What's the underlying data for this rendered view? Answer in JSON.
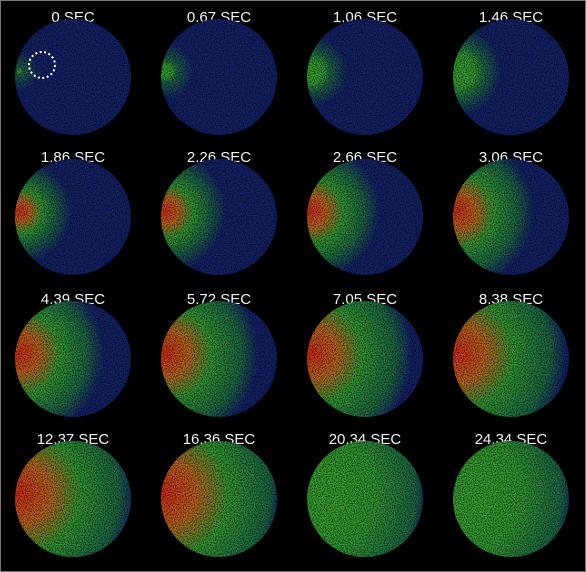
{
  "panels": [
    {
      "label": "0 SEC"
    },
    {
      "label": "0.67 SEC"
    },
    {
      "label": "1.06 SEC"
    },
    {
      "label": "1.46 SEC"
    },
    {
      "label": "1.86 SEC"
    },
    {
      "label": "2.26 SEC"
    },
    {
      "label": "2.66 SEC"
    },
    {
      "label": "3.06 SEC"
    },
    {
      "label": "4.39 SEC"
    },
    {
      "label": "5.72 SEC"
    },
    {
      "label": "7.05 SEC"
    },
    {
      "label": "8.38 SEC"
    },
    {
      "label": "12.37 SEC"
    },
    {
      "label": "16.36 SEC"
    },
    {
      "label": "20.34 SEC"
    },
    {
      "label": "24.34 SEC"
    }
  ]
}
